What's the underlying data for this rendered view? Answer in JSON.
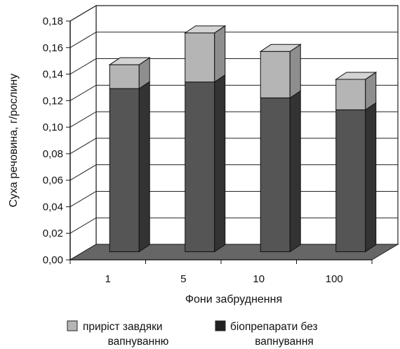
{
  "chart_data": {
    "type": "bar",
    "stacked": true,
    "three_d": true,
    "categories": [
      "1",
      "5",
      "10",
      "100"
    ],
    "series": [
      {
        "name": "біопрепарати без вапнування",
        "values": [
          0.123,
          0.128,
          0.116,
          0.107
        ],
        "color": "#555555"
      },
      {
        "name": "приріст завдяки вапнуванню",
        "values": [
          0.018,
          0.037,
          0.035,
          0.023
        ],
        "color": "#b5b5b5"
      }
    ],
    "xlabel": "Фони забруднення",
    "ylabel": "Суха речовина, г/рослину",
    "ylim": [
      0,
      0.18
    ],
    "yticks": [
      "0,00",
      "0,02",
      "0,04",
      "0,06",
      "0,08",
      "0,10",
      "0,12",
      "0,14",
      "0,16",
      "0,18"
    ],
    "grid": true,
    "legend": {
      "placement": "bottom",
      "items": [
        {
          "lines": [
            "приріст завдяки",
            "вапнуванню"
          ],
          "color": "#b5b5b5"
        },
        {
          "lines": [
            "біопрепарати без",
            "вапнування"
          ],
          "color": "#222222"
        }
      ]
    }
  }
}
